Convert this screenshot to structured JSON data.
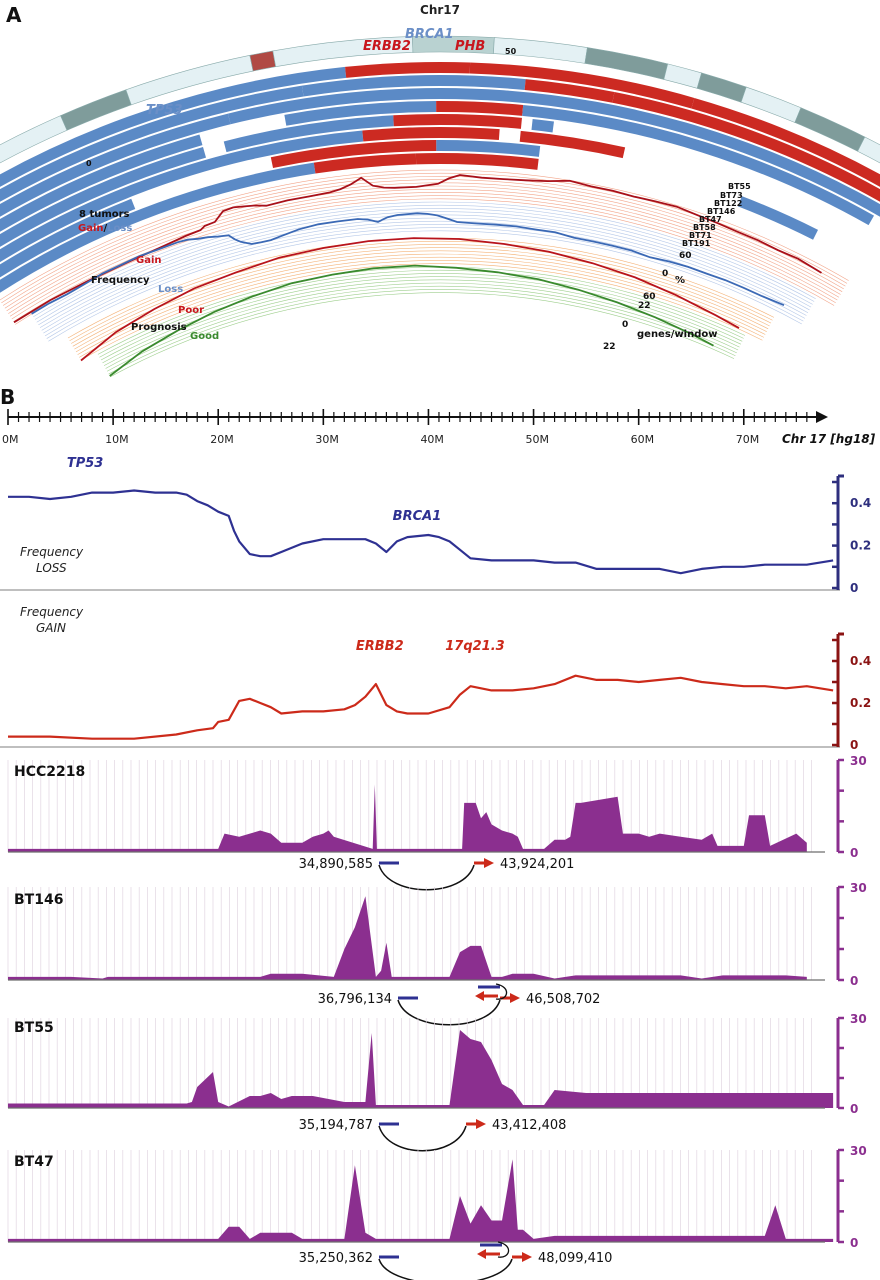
{
  "panel_a": {
    "panel_label": "A",
    "title": "Chr17",
    "genes": [
      {
        "name": "TP53",
        "color": "#6b8fc7"
      },
      {
        "name": "ERBB2",
        "color": "#c8161d"
      },
      {
        "name": "BRCA1",
        "color": "#6b8fc7"
      },
      {
        "name": "PHB",
        "color": "#c8161d"
      }
    ],
    "ideogram_ticks": {
      "start": "0",
      "mid": "50"
    },
    "track_labels": {
      "tumors": "8 tumors",
      "gain": "Gain",
      "slash": "/",
      "loss": "Loss",
      "freq_gain": "Gain",
      "frequency": "Frequency",
      "freq_loss": "Loss",
      "poor": "Poor",
      "prognosis": "Prognosis",
      "good": "Good"
    },
    "samples": [
      "BT55",
      "BT73",
      "BT122",
      "BT146",
      "BT47",
      "BT58",
      "BT71",
      "BT191"
    ],
    "scales": {
      "freq_gain_max": "60",
      "freq_loss_zero": "0",
      "freq_unit": "%",
      "freq_loss_max": "60",
      "prog_poor_max": "22",
      "prog_zero": "0",
      "prog_unit": "genes/window",
      "prog_good_max": "22"
    },
    "colors": {
      "gain": "#cc2a22",
      "loss": "#5b8ac6",
      "good": "#3a8a2e",
      "poor": "#c8161d"
    }
  },
  "panel_b": {
    "panel_label": "B",
    "axis": {
      "ticks": [
        "0M",
        "10M",
        "20M",
        "30M",
        "40M",
        "50M",
        "60M",
        "70M"
      ],
      "title": "Chr 17 [hg18]"
    }
  },
  "chart_data": [
    {
      "type": "line",
      "title": "Frequency LOSS",
      "label_line1": "Frequency",
      "label_line2": "LOSS",
      "color": "#2e3192",
      "xlabel": "Chr 17 [hg18] (Mb)",
      "ylim": [
        0,
        0.5
      ],
      "yticks": [
        "0",
        "0.2",
        "0.4"
      ],
      "annotations": [
        {
          "text": "TP53",
          "x": 7.5
        },
        {
          "text": "BRCA1",
          "x": 38.5
        }
      ],
      "x": [
        0,
        2,
        4,
        6,
        8,
        10,
        12,
        14,
        16,
        17,
        18,
        19,
        20,
        21,
        21.5,
        22,
        23,
        24,
        25,
        26,
        28,
        30,
        32,
        34,
        35,
        36,
        37,
        38,
        40,
        41,
        42,
        43,
        44,
        46,
        48,
        50,
        52,
        54,
        56,
        58,
        60,
        62,
        64,
        66,
        68,
        70,
        72,
        74,
        76,
        78.5
      ],
      "y": [
        0.43,
        0.43,
        0.42,
        0.43,
        0.45,
        0.45,
        0.46,
        0.45,
        0.45,
        0.44,
        0.41,
        0.39,
        0.36,
        0.34,
        0.27,
        0.22,
        0.16,
        0.15,
        0.15,
        0.17,
        0.21,
        0.23,
        0.23,
        0.23,
        0.21,
        0.17,
        0.22,
        0.24,
        0.25,
        0.24,
        0.22,
        0.18,
        0.14,
        0.13,
        0.13,
        0.13,
        0.12,
        0.12,
        0.09,
        0.09,
        0.09,
        0.09,
        0.07,
        0.09,
        0.1,
        0.1,
        0.11,
        0.11,
        0.11,
        0.13
      ]
    },
    {
      "type": "line",
      "title": "Frequency GAIN",
      "label_line1": "Frequency",
      "label_line2": "GAIN",
      "color": "#cc2a1a",
      "xlabel": "Chr 17 [hg18] (Mb)",
      "ylim": [
        0,
        0.5
      ],
      "yticks": [
        "0",
        "0.2",
        "0.4"
      ],
      "annotations": [
        {
          "text": "ERBB2",
          "x": 35
        },
        {
          "text": "17q21.3",
          "x": 43.5
        }
      ],
      "x": [
        0,
        4,
        8,
        12,
        16,
        18,
        19.5,
        20,
        21,
        22,
        23,
        24,
        25,
        26,
        28,
        30,
        32,
        33,
        34,
        35,
        36,
        37,
        38,
        40,
        42,
        43,
        44,
        46,
        48,
        50,
        52,
        54,
        56,
        58,
        60,
        62,
        64,
        66,
        68,
        70,
        72,
        74,
        76,
        78.5
      ],
      "y": [
        0.04,
        0.04,
        0.03,
        0.03,
        0.05,
        0.07,
        0.08,
        0.11,
        0.12,
        0.21,
        0.22,
        0.2,
        0.18,
        0.15,
        0.16,
        0.16,
        0.17,
        0.19,
        0.23,
        0.29,
        0.19,
        0.16,
        0.15,
        0.15,
        0.18,
        0.24,
        0.28,
        0.26,
        0.26,
        0.27,
        0.29,
        0.33,
        0.31,
        0.31,
        0.3,
        0.31,
        0.32,
        0.3,
        0.29,
        0.28,
        0.28,
        0.27,
        0.28,
        0.26
      ]
    },
    {
      "type": "area",
      "title": "HCC2218",
      "color": "#8b2f8f",
      "ylim": [
        0,
        30
      ],
      "yticks": [
        "0",
        "30"
      ],
      "x": [
        0,
        6,
        6.5,
        20,
        20.6,
        22,
        23,
        24,
        25,
        26,
        27,
        28,
        29,
        30,
        30.5,
        31,
        34.7,
        34.9,
        35.1,
        35.5,
        43.2,
        43.4,
        44.5,
        45,
        45.5,
        46,
        47,
        48,
        48.5,
        49,
        51,
        52,
        53,
        53.5,
        54,
        54.5,
        58,
        58.5,
        60,
        61,
        62,
        64,
        66,
        67,
        67.5,
        68,
        70,
        70.5,
        72,
        72.5,
        75,
        76
      ],
      "y": [
        1,
        1,
        1,
        1,
        6,
        5,
        6,
        7,
        6,
        3,
        3,
        3,
        5,
        6,
        7,
        5,
        1,
        22,
        1,
        1,
        1,
        16,
        16,
        11,
        13,
        9,
        7,
        6,
        5,
        1,
        1,
        4,
        4,
        5,
        16,
        16,
        18,
        6,
        6,
        5,
        6,
        5,
        4,
        6,
        2,
        2,
        2,
        12,
        12,
        2,
        6,
        3
      ],
      "annotation": {
        "left": "34,890,585",
        "right": "43,924,201"
      }
    },
    {
      "type": "area",
      "title": "BT146",
      "color": "#8b2f8f",
      "ylim": [
        0,
        30
      ],
      "yticks": [
        "0",
        "30"
      ],
      "x": [
        0,
        6,
        9,
        9.5,
        10,
        18,
        20,
        22,
        24,
        25,
        26,
        28,
        31,
        32,
        33,
        34,
        35,
        35.5,
        36,
        36.5,
        37,
        38,
        39,
        40,
        42,
        43,
        44,
        45,
        46,
        47,
        48,
        50,
        52,
        54,
        56,
        58,
        60,
        62,
        64,
        66,
        68,
        70,
        72,
        74,
        76
      ],
      "y": [
        1,
        1,
        0.5,
        1,
        1,
        1,
        1,
        1,
        1,
        2,
        2,
        2,
        1,
        10,
        17,
        27,
        1,
        3,
        12,
        1,
        1,
        1,
        1,
        1,
        1,
        9,
        11,
        11,
        1,
        1,
        2,
        2,
        0.5,
        1.5,
        1.5,
        1.5,
        1.5,
        1.5,
        1.5,
        0.5,
        1.5,
        1.5,
        1.5,
        1.5,
        1
      ],
      "annotation": {
        "left": "36,796,134",
        "right": "46,508,702"
      }
    },
    {
      "type": "area",
      "title": "BT55",
      "color": "#8b2f8f",
      "ylim": [
        0,
        30
      ],
      "yticks": [
        "0",
        "30"
      ],
      "x": [
        0,
        17,
        17.5,
        18,
        19.5,
        20,
        21,
        23,
        24,
        25,
        26,
        27,
        29,
        32,
        33,
        34,
        34.6,
        35,
        36,
        42,
        43,
        44,
        45,
        46,
        47,
        48,
        49,
        50,
        51,
        52,
        55,
        56,
        60,
        64,
        68,
        72,
        76,
        78.5
      ],
      "y": [
        1.5,
        1.5,
        2,
        7,
        12,
        2,
        0.5,
        4,
        4,
        5,
        3,
        4,
        4,
        2,
        2,
        2,
        25,
        1,
        1,
        1,
        26,
        23,
        22,
        16,
        8,
        6,
        1,
        1,
        1,
        6,
        5,
        5,
        5,
        5,
        5,
        5,
        5,
        5
      ],
      "annotation": {
        "left": "35,194,787",
        "right": "43,412,408"
      }
    },
    {
      "type": "area",
      "title": "BT47",
      "color": "#8b2f8f",
      "ylim": [
        0,
        30
      ],
      "yticks": [
        "0",
        "30"
      ],
      "x": [
        0,
        20,
        21,
        22,
        23,
        24,
        27,
        28,
        32,
        33,
        34,
        35,
        36,
        42,
        43,
        44,
        45,
        46,
        47,
        48,
        48.5,
        49,
        50,
        52,
        60,
        68,
        72,
        73,
        74,
        78.5
      ],
      "y": [
        1,
        1,
        5,
        5,
        1,
        3,
        3,
        1,
        1,
        25,
        3,
        1,
        1,
        1,
        15,
        6,
        12,
        7,
        7,
        27,
        4,
        4,
        1,
        2,
        2,
        2,
        2,
        12,
        1,
        1
      ],
      "annotation": {
        "left": "35,250,362",
        "right": "48,099,410"
      }
    }
  ]
}
